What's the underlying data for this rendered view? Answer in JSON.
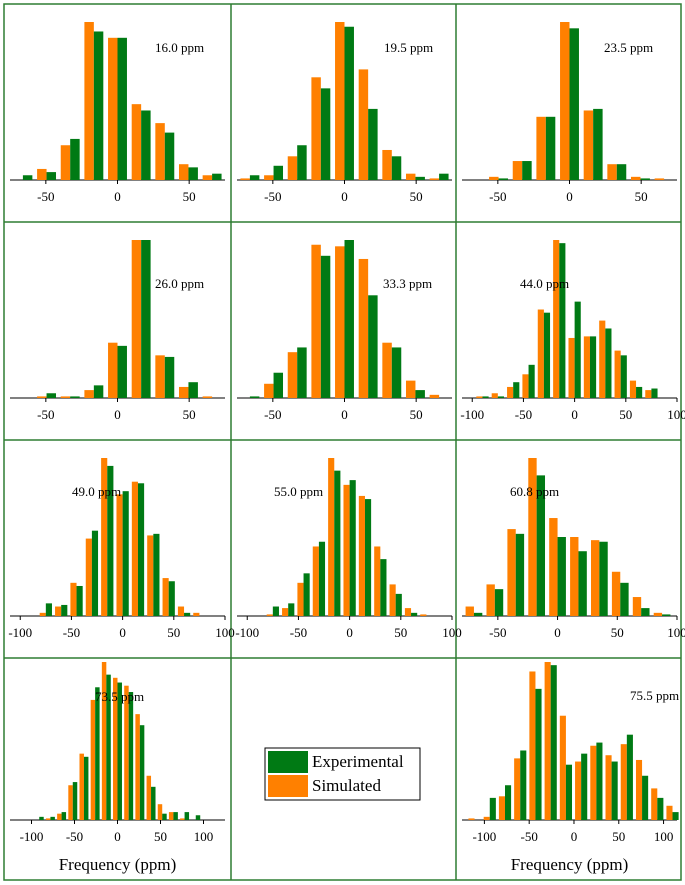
{
  "legend": [
    {
      "name": "Experimental",
      "color": "#007a14"
    },
    {
      "name": "Simulated",
      "color": "#ff8000"
    }
  ],
  "chart_data": [
    {
      "type": "bar",
      "annotation": "16.0 ppm",
      "x": [
        -66,
        -49.5,
        -33,
        -16.5,
        0,
        16.5,
        33,
        49.5,
        66
      ],
      "xlim": [
        -75,
        75
      ],
      "xticks": [
        -50,
        0,
        50
      ],
      "series": [
        {
          "values": [
            3,
            5,
            26,
            94,
            90,
            44,
            30,
            8,
            4
          ]
        },
        {
          "values": [
            0,
            7,
            22,
            100,
            90,
            48,
            36,
            10,
            3
          ]
        }
      ]
    },
    {
      "type": "bar",
      "annotation": "19.5 ppm",
      "x": [
        -66,
        -49.5,
        -33,
        -16.5,
        0,
        16.5,
        33,
        49.5,
        66
      ],
      "xlim": [
        -75,
        75
      ],
      "xticks": [
        -50,
        0,
        50
      ],
      "series": [
        {
          "values": [
            3,
            9,
            22,
            58,
            97,
            45,
            15,
            2,
            4
          ]
        },
        {
          "values": [
            1,
            3,
            15,
            65,
            100,
            70,
            19,
            4,
            1
          ]
        }
      ]
    },
    {
      "type": "bar",
      "annotation": "23.5 ppm",
      "x": [
        -66,
        -49.5,
        -33,
        -16.5,
        0,
        16.5,
        33,
        49.5,
        66
      ],
      "xlim": [
        -75,
        75
      ],
      "xticks": [
        -50,
        0,
        50
      ],
      "series": [
        {
          "values": [
            0,
            1,
            12,
            40,
            96,
            45,
            10,
            1,
            0
          ]
        },
        {
          "values": [
            0,
            2,
            12,
            40,
            100,
            44,
            10,
            2,
            1
          ]
        }
      ]
    },
    {
      "type": "bar",
      "annotation": "26.0 ppm",
      "x": [
        -66,
        -49.5,
        -33,
        -16.5,
        0,
        16.5,
        33,
        49.5,
        66
      ],
      "xlim": [
        -75,
        75
      ],
      "xticks": [
        -50,
        0,
        50
      ],
      "series": [
        {
          "values": [
            0,
            3,
            1,
            8,
            33,
            100,
            26,
            10,
            0
          ]
        },
        {
          "values": [
            0,
            1,
            1,
            5,
            35,
            100,
            27,
            7,
            1
          ]
        }
      ]
    },
    {
      "type": "bar",
      "annotation": "33.3 ppm",
      "x": [
        -66,
        -49.5,
        -33,
        -16.5,
        0,
        16.5,
        33,
        49.5,
        66
      ],
      "xlim": [
        -75,
        75
      ],
      "xticks": [
        -50,
        0,
        50
      ],
      "series": [
        {
          "values": [
            1,
            16,
            32,
            90,
            100,
            65,
            32,
            5,
            0
          ]
        },
        {
          "values": [
            0,
            9,
            29,
            97,
            96,
            88,
            35,
            11,
            2
          ]
        }
      ]
    },
    {
      "type": "bar",
      "annotation": "44.0 ppm",
      "x": [
        -90,
        -75,
        -60,
        -45,
        -30,
        -15,
        0,
        15,
        30,
        45,
        60,
        75
      ],
      "xlim": [
        -110,
        100
      ],
      "xticks": [
        -100,
        -50,
        0,
        50,
        100
      ],
      "series": [
        {
          "values": [
            1,
            1,
            10,
            21,
            54,
            98,
            61,
            39,
            44,
            27,
            7,
            6
          ]
        },
        {
          "values": [
            1,
            3,
            7,
            15,
            56,
            100,
            38,
            39,
            49,
            30,
            11,
            5
          ]
        }
      ]
    },
    {
      "type": "bar",
      "annotation": "49.0 ppm",
      "x": [
        -75,
        -60,
        -45,
        -30,
        -15,
        0,
        15,
        30,
        45,
        60,
        75
      ],
      "xlim": [
        -110,
        100
      ],
      "xticks": [
        -100,
        -50,
        0,
        50,
        100
      ],
      "series": [
        {
          "values": [
            8,
            7,
            19,
            54,
            95,
            79,
            84,
            52,
            22,
            2,
            0
          ]
        },
        {
          "values": [
            2,
            6,
            21,
            49,
            100,
            77,
            85,
            51,
            24,
            6,
            2
          ]
        }
      ]
    },
    {
      "type": "bar",
      "annotation": "55.0 ppm",
      "x": [
        -75,
        -60,
        -45,
        -30,
        -15,
        0,
        15,
        30,
        45,
        60,
        75
      ],
      "xlim": [
        -110,
        100
      ],
      "xticks": [
        -100,
        -50,
        0,
        50,
        100
      ],
      "series": [
        {
          "values": [
            6,
            8,
            27,
            47,
            92,
            86,
            74,
            36,
            14,
            2,
            0
          ]
        },
        {
          "values": [
            1,
            5,
            21,
            44,
            100,
            83,
            76,
            44,
            20,
            5,
            1
          ]
        }
      ]
    },
    {
      "type": "bar",
      "annotation": "60.8 ppm",
      "x": [
        -70,
        -52.5,
        -35,
        -17.5,
        0,
        17.5,
        35,
        52.5,
        70,
        87.5
      ],
      "xlim": [
        -80,
        100
      ],
      "xticks": [
        -50,
        0,
        50,
        100
      ],
      "series": [
        {
          "values": [
            2,
            17,
            52,
            89,
            50,
            41,
            47,
            21,
            5,
            1
          ]
        },
        {
          "values": [
            6,
            20,
            55,
            100,
            62,
            50,
            48,
            28,
            12,
            2
          ]
        }
      ]
    },
    {
      "type": "bar",
      "annotation": "73.5 ppm",
      "xlabel": "Frequency (ppm)",
      "x": [
        -91,
        -78,
        -65,
        -52,
        -39,
        -26,
        -13,
        0,
        13,
        26,
        39,
        52,
        65,
        78,
        91
      ],
      "xlim": [
        -125,
        125
      ],
      "xticks": [
        -100,
        -50,
        0,
        50,
        100
      ],
      "series": [
        {
          "values": [
            2,
            2,
            5,
            24,
            40,
            84,
            92,
            87,
            81,
            60,
            21,
            4,
            5,
            5,
            3
          ]
        },
        {
          "values": [
            0,
            1,
            4,
            22,
            42,
            76,
            100,
            90,
            85,
            67,
            28,
            10,
            5,
            1,
            0
          ]
        }
      ]
    },
    {
      "type": "bar",
      "annotation": "75.5 ppm",
      "xlabel": "Frequency (ppm)",
      "x": [
        -111,
        -94,
        -77,
        -60,
        -43,
        -26,
        -9,
        8,
        25,
        42,
        59,
        76,
        93,
        110
      ],
      "xlim": [
        -125,
        115
      ],
      "xticks": [
        -100,
        -50,
        0,
        50,
        100
      ],
      "series": [
        {
          "values": [
            0,
            14,
            22,
            44,
            83,
            98,
            35,
            42,
            49,
            37,
            54,
            28,
            14,
            5
          ]
        },
        {
          "values": [
            1,
            2,
            15,
            39,
            94,
            100,
            66,
            37,
            47,
            41,
            48,
            38,
            20,
            9
          ]
        }
      ]
    }
  ]
}
